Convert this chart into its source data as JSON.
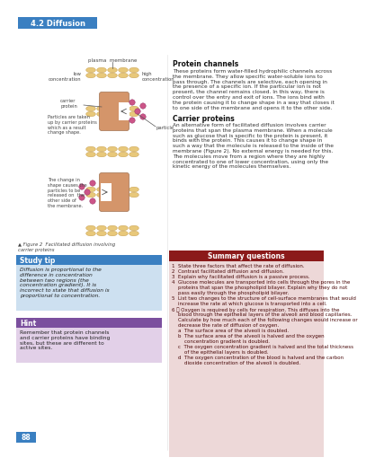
{
  "title": "4.2 Diffusion",
  "title_bg": "#3a7fc1",
  "title_color": "#ffffff",
  "protein_channels_title": "Protein channels",
  "protein_channels_text": "These proteins form water-filled hydrophilic channels across\nthe membrane. They allow specific water-soluble ions to\npass through. The channels are selective, each opening in\nthe presence of a specific ion. If the particular ion is not\npresent, the channel remains closed. In this way, there is\ncontrol over the entry and exit of ions. The ions bind with\nthe protein causing it to change shape in a way that closes it\nto one side of the membrane and opens it to the other side.",
  "carrier_proteins_title": "Carrier proteins",
  "carrier_proteins_text": "An alternative form of facilitated diffusion involves carrier\nproteins that span the plasma membrane. When a molecule\nsuch as glucose that is specific to the protein is present, it\nbinds with the protein. This causes it to change shape in\nsuch a way that the molecule is released to the inside of the\nmembrane (Figure 2). No external energy is needed for this.\nThe molecules move from a region where they are highly\nconcentrated to one of lower concentration, using only the\nkinetic energy of the molecules themselves.",
  "figure_caption": "▲ Figure 2  Facilitated diffusion involving\ncarrier proteins",
  "study_tip_title": "Study tip",
  "study_tip_bg": "#cde0f0",
  "study_tip_title_bg": "#3a7fc1",
  "study_tip_text": "Diffusion is proportional to the\ndifference in concentration\nbetween two regions (the\nconcentration gradient). It is\nincorrect to state that diffusion is\nproportional to concentration.",
  "hint_title": "Hint",
  "hint_bg": "#e2d0e8",
  "hint_title_bg": "#7b4f9e",
  "hint_text": "Remember that protein channels\nand carrier proteins have binding\nsites, but these are different to\nactive sites.",
  "summary_title": "Summary questions",
  "summary_bg": "#edd8d8",
  "summary_title_bg": "#8b1a1a",
  "summary_title_color": "#ffffff",
  "summary_q1": "1  State three factors that affect the rate of diffusion.",
  "summary_q2": "2  Contrast facilitated diffusion and diffusion.",
  "summary_q3": "3  Explain why facilitated diffusion is a passive process.",
  "summary_q4a": "4  Glucose molecules are transported into cells through the pores in the",
  "summary_q4b": "    proteins that span the phospholipid bilayer. Explain why they do not",
  "summary_q4c": "    pass easily through the phospholipid bilayer.",
  "summary_q5a": "5  List two changes to the structure of cell-surface membranes that would",
  "summary_q5b": "    increase the rate at which glucose is transported into a cell.",
  "summary_q6a": "6 Ⓜ Oxygen is required by cells for respiration. This diffuses into the",
  "summary_q6b": "    blood through the epithelial layers of the alveoli and blood capillaries.",
  "summary_q6c": "    Calculate by how much each of the following changes would increase or",
  "summary_q6d": "    decrease the rate of diffusion of oxygen.",
  "summary_q6e": "    a  The surface area of the alveoli is doubled.",
  "summary_q6f": "    b  The surface area of the alveoli is halved and the oxygen",
  "summary_q6g": "        concentration gradient is doubled.",
  "summary_q6h": "    c  The oxygen concentration gradient is halved and the total thickness",
  "summary_q6i": "        of the epithelial layers is doubled.",
  "summary_q6j": "    d  The oxygen concentration of the blood is halved and the carbon",
  "summary_q6k": "        dioxide concentration of the alveoli is doubled.",
  "page_number": "88",
  "membrane_color": "#e8c87a",
  "membrane_edge": "#c8a050",
  "carrier_color": "#d4956a",
  "carrier_edge": "#a07050",
  "particle_color": "#cc5588",
  "particle_edge": "#993366"
}
